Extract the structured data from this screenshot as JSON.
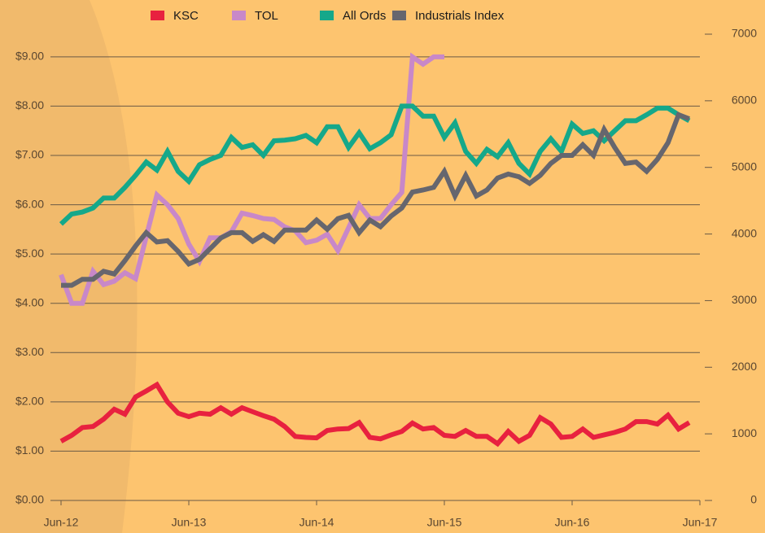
{
  "chart_data": {
    "type": "line",
    "categories": [
      "Jun-12",
      null,
      null,
      null,
      null,
      null,
      null,
      null,
      null,
      null,
      null,
      null,
      "Jun-13",
      null,
      null,
      null,
      null,
      null,
      null,
      null,
      null,
      null,
      null,
      null,
      "Jun-14",
      null,
      null,
      null,
      null,
      null,
      null,
      null,
      null,
      null,
      null,
      null,
      "Jun-15",
      null,
      null,
      null,
      null,
      null,
      null,
      null,
      null,
      null,
      null,
      null,
      "Jun-16",
      null,
      null,
      null,
      null,
      null,
      null,
      null,
      null,
      null,
      null,
      null,
      "Jun-17"
    ],
    "ylim": [
      0,
      9.46
    ],
    "yticks": [
      {
        "value": 0,
        "label": "$0.00"
      },
      {
        "value": 1,
        "label": "$1.00"
      },
      {
        "value": 2,
        "label": "$2.00"
      },
      {
        "value": 3,
        "label": "$3.00"
      },
      {
        "value": 4,
        "label": "$4.00"
      },
      {
        "value": 5,
        "label": "$5.00"
      },
      {
        "value": 6,
        "label": "$6.00"
      },
      {
        "value": 7,
        "label": "$7.00"
      },
      {
        "value": 8,
        "label": "$8.00"
      },
      {
        "value": 9,
        "label": "$9.00"
      }
    ],
    "y2lim": [
      0,
      7000
    ],
    "y2ticks": [
      0,
      1000,
      2000,
      3000,
      4000,
      5000,
      6000,
      7000
    ],
    "grid": true,
    "legend": "top",
    "series": [
      {
        "name": "KSC",
        "color": "#e8213f",
        "values": [
          1.2,
          1.32,
          1.48,
          1.5,
          1.65,
          1.85,
          1.75,
          2.1,
          2.22,
          2.35,
          2.0,
          1.77,
          1.7,
          1.77,
          1.75,
          1.88,
          1.75,
          1.88,
          1.8,
          1.72,
          1.65,
          1.5,
          1.3,
          1.28,
          1.27,
          1.42,
          1.45,
          1.46,
          1.58,
          1.28,
          1.25,
          1.33,
          1.4,
          1.57,
          1.45,
          1.48,
          1.32,
          1.3,
          1.42,
          1.3,
          1.3,
          1.15,
          1.4,
          1.2,
          1.32,
          1.68,
          1.55,
          1.28,
          1.3,
          1.45,
          1.28,
          1.33,
          1.38,
          1.45,
          1.6,
          1.6,
          1.55,
          1.73,
          1.45,
          1.58,
          null
        ]
      },
      {
        "name": "TOL",
        "color": "#c888c8",
        "values": [
          4.58,
          4.0,
          4.0,
          4.65,
          4.38,
          4.45,
          4.62,
          4.5,
          5.35,
          6.2,
          6.0,
          5.72,
          5.2,
          4.85,
          5.33,
          5.33,
          5.45,
          5.83,
          5.78,
          5.72,
          5.7,
          5.55,
          5.47,
          5.23,
          5.28,
          5.4,
          5.07,
          5.53,
          6.0,
          5.72,
          5.72,
          6.0,
          6.25,
          9.0,
          8.85,
          9.0,
          9.0,
          null,
          null,
          null,
          null,
          null,
          null,
          null,
          null,
          null,
          null,
          null,
          null,
          null,
          null,
          null,
          null,
          null,
          null,
          null,
          null,
          null,
          null,
          null,
          null
        ]
      },
      {
        "name": "All Ords",
        "color": "#15a88a",
        "axis": "y2",
        "values": [
          4150,
          4300,
          4330,
          4390,
          4540,
          4540,
          4700,
          4880,
          5080,
          4960,
          5240,
          4940,
          4790,
          5040,
          5120,
          5180,
          5450,
          5300,
          5340,
          5180,
          5400,
          5410,
          5430,
          5480,
          5370,
          5610,
          5610,
          5300,
          5520,
          5280,
          5370,
          5490,
          5920,
          5920,
          5770,
          5770,
          5450,
          5670,
          5240,
          5060,
          5270,
          5160,
          5370,
          5060,
          4900,
          5240,
          5430,
          5240,
          5650,
          5510,
          5550,
          5400,
          5550,
          5700,
          5700,
          5790,
          5890,
          5890,
          5790,
          5700,
          null
        ]
      },
      {
        "name": "Industrials Index",
        "color": "#66666e",
        "axis": "y2",
        "values": [
          3230,
          3230,
          3320,
          3320,
          3440,
          3400,
          3600,
          3820,
          4020,
          3880,
          3900,
          3740,
          3550,
          3620,
          3780,
          3940,
          4020,
          4020,
          3890,
          3990,
          3890,
          4060,
          4060,
          4060,
          4210,
          4070,
          4230,
          4280,
          4020,
          4210,
          4110,
          4270,
          4390,
          4630,
          4660,
          4700,
          4940,
          4570,
          4880,
          4570,
          4660,
          4840,
          4900,
          4860,
          4760,
          4880,
          5060,
          5180,
          5180,
          5340,
          5180,
          5570,
          5300,
          5060,
          5080,
          4940,
          5120,
          5370,
          5790,
          5730,
          null
        ]
      }
    ]
  }
}
